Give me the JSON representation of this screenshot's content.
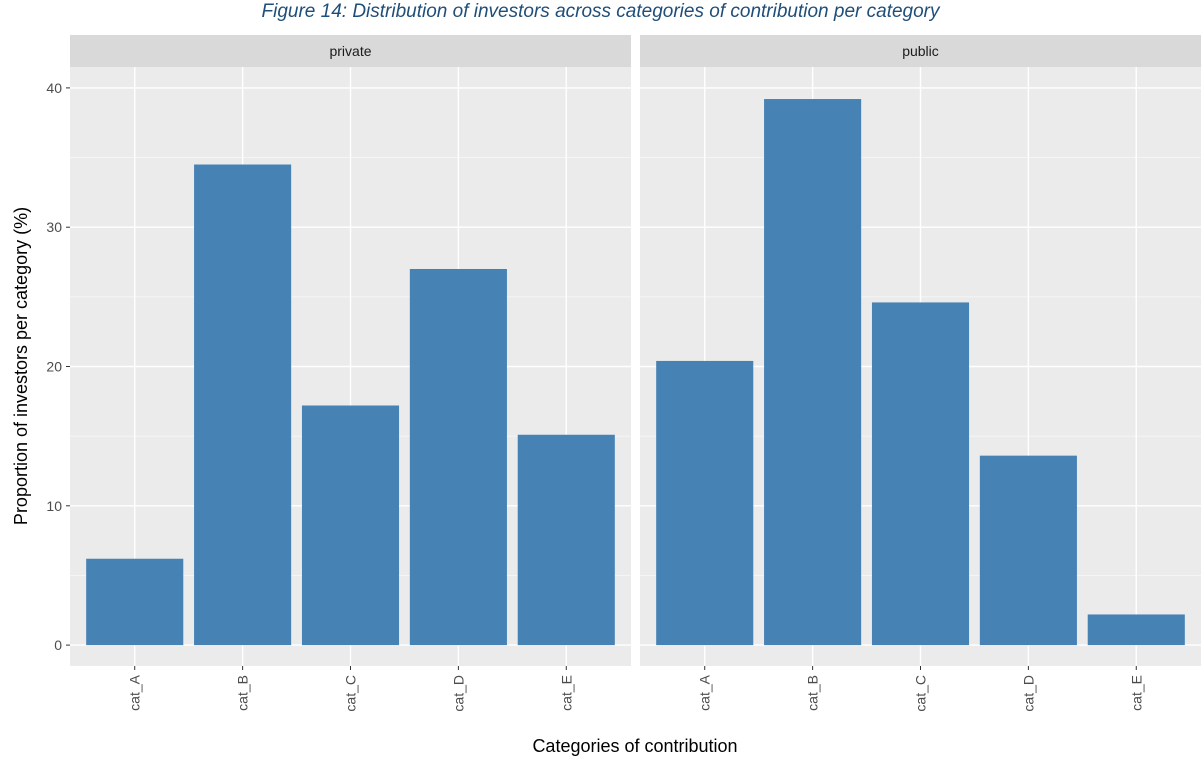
{
  "figure": {
    "caption": "Figure 14: Distribution of investors across categories of contribution per category"
  },
  "colors": {
    "bar": "#4682b4",
    "panel_bg": "#ebebeb",
    "strip_bg": "#d9d9d9",
    "grid_major": "#ffffff",
    "grid_minor": "#f5f5f5"
  },
  "chart_data": {
    "type": "bar",
    "xlabel": "Categories of contribution",
    "ylabel": "Proportion of investors per category (%)",
    "ylim": [
      -1.5,
      41.5
    ],
    "yticks": [
      0,
      10,
      20,
      30,
      40
    ],
    "grid": true,
    "categories": [
      "cat_A",
      "cat_B",
      "cat_C",
      "cat_D",
      "cat_E"
    ],
    "panels": [
      {
        "name": "private",
        "values": [
          6.2,
          34.5,
          17.2,
          27.0,
          15.1
        ]
      },
      {
        "name": "public",
        "values": [
          20.4,
          39.2,
          24.6,
          13.6,
          2.2
        ]
      }
    ]
  }
}
